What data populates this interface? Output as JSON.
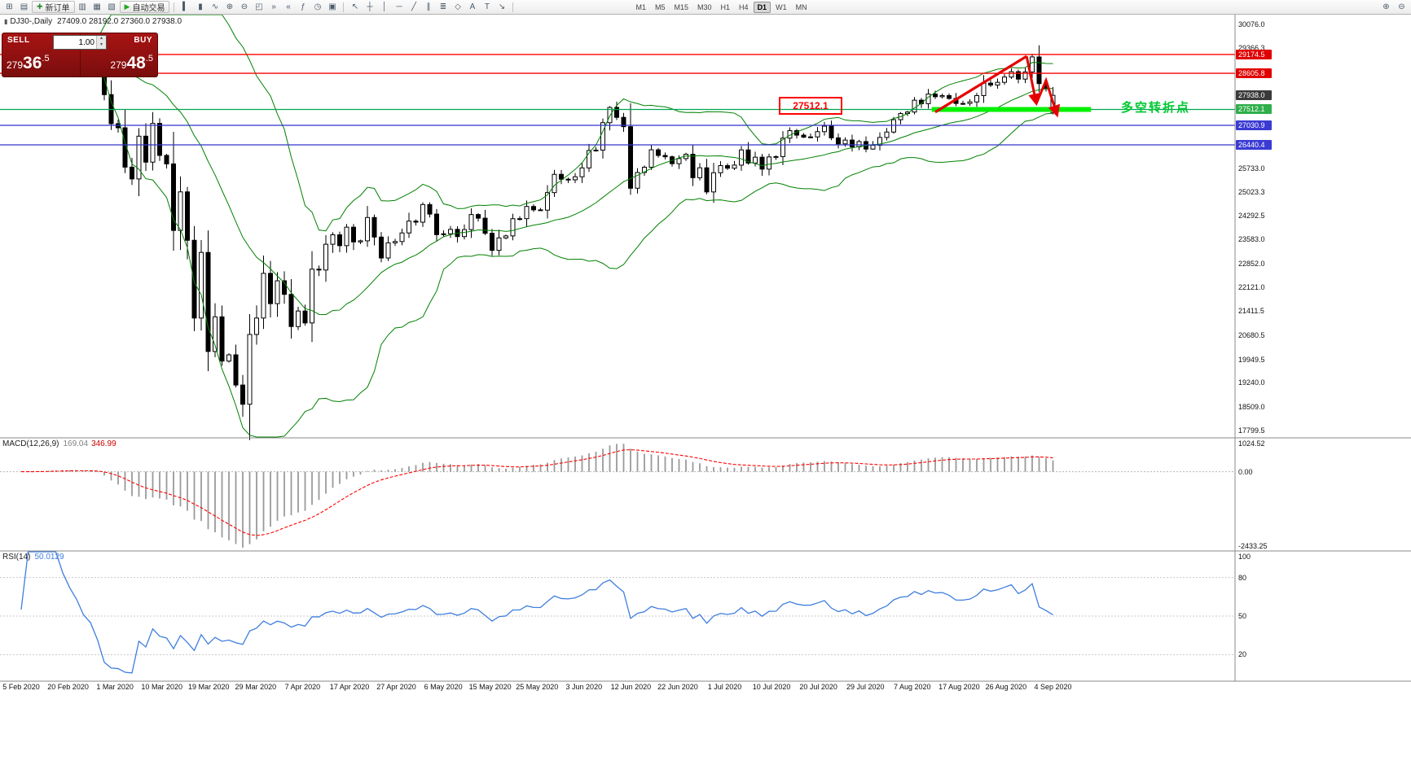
{
  "toolbar": {
    "groups": [
      {
        "items": [
          {
            "name": "new-chart-icon",
            "glyph": "⊞"
          },
          {
            "name": "chart-profiles-icon",
            "glyph": "▤"
          }
        ]
      },
      {
        "items": [
          {
            "name": "new-order-button",
            "glyph": "✚",
            "glyph_color": "#2e8b2e",
            "label": "新订单"
          }
        ]
      },
      {
        "items": [
          {
            "name": "market-watch-icon",
            "glyph": "▥"
          },
          {
            "name": "data-window-icon",
            "glyph": "▦"
          },
          {
            "name": "navigator-icon",
            "glyph": "▧"
          }
        ]
      },
      {
        "items": [
          {
            "name": "autotrading-button",
            "glyph": "▶",
            "glyph_color": "#1faa1f",
            "label": "自动交易"
          }
        ]
      },
      {
        "separator": true
      },
      {
        "items": [
          {
            "name": "bar-chart-icon",
            "glyph": "▍"
          },
          {
            "name": "candlestick-chart-icon",
            "glyph": "▮"
          },
          {
            "name": "line-chart-icon",
            "glyph": "∿"
          },
          {
            "name": "zoom-in-icon",
            "glyph": "⊕"
          },
          {
            "name": "zoom-out-icon",
            "glyph": "⊖"
          },
          {
            "name": "tile-windows-icon",
            "glyph": "◰"
          },
          {
            "name": "auto-scroll-icon",
            "glyph": "»"
          },
          {
            "name": "chart-shift-icon",
            "glyph": "«"
          },
          {
            "name": "indicators-icon",
            "glyph": "ƒ"
          },
          {
            "name": "periods-icon",
            "glyph": "◷"
          },
          {
            "name": "templates-icon",
            "glyph": "▣"
          }
        ]
      },
      {
        "separator": true
      },
      {
        "items": [
          {
            "name": "cursor-icon",
            "glyph": "↖"
          },
          {
            "name": "crosshair-icon",
            "glyph": "┼"
          },
          {
            "name": "vertical-line-icon",
            "glyph": "│"
          },
          {
            "name": "horizontal-line-icon",
            "glyph": "─"
          },
          {
            "name": "trendline-icon",
            "glyph": "╱"
          },
          {
            "name": "channel-icon",
            "glyph": "∥"
          },
          {
            "name": "fibonacci-icon",
            "glyph": "≣"
          },
          {
            "name": "shapes-icon",
            "glyph": "◇"
          },
          {
            "name": "text-icon",
            "glyph": "A"
          },
          {
            "name": "label-icon",
            "glyph": "T"
          },
          {
            "name": "arrows-icon",
            "glyph": "↘"
          }
        ]
      },
      {
        "separator": true
      }
    ],
    "timeframes": [
      {
        "label": "M1"
      },
      {
        "label": "M5"
      },
      {
        "label": "M15"
      },
      {
        "label": "M30"
      },
      {
        "label": "H1"
      },
      {
        "label": "H4"
      },
      {
        "label": "D1",
        "active": true
      },
      {
        "label": "W1"
      },
      {
        "label": "MN"
      }
    ],
    "right_items": [
      {
        "name": "magnifier-plus-icon",
        "glyph": "⊕"
      },
      {
        "name": "magnifier-minus-icon",
        "glyph": "⊖"
      }
    ]
  },
  "icons": {
    "spin_up": "▴",
    "spin_down": "▾",
    "symbol_icon": "▮"
  },
  "quote_bar": {
    "symbol_period": "DJ30-,Daily",
    "ohlc": "27409.0 28192.0 27360.0 27938.0"
  },
  "one_click": {
    "sell_label": "SELL",
    "buy_label": "BUY",
    "volume": "1.00",
    "sell_price": "27936.5",
    "buy_price": "27948.5"
  },
  "annotations": {
    "level_box": "27512.1",
    "turning_point_text": "多空转折点"
  },
  "indicators": {
    "macd_label": "MACD(12,26,9)",
    "macd_value_main": "169.04",
    "macd_value_signal": "346.99",
    "rsi_label": "RSI(14)",
    "rsi_value": "50.0129"
  },
  "chart_data": {
    "type": "candlestick",
    "symbol": "DJ30-",
    "timeframe": "Daily",
    "visible_range": {
      "first_date": "5 Feb 2020",
      "last_date": "8 Sep 2020",
      "price_min": 17600,
      "price_max": 30380
    },
    "last_candle": {
      "open": 27409.0,
      "high": 28192.0,
      "low": 27360.0,
      "close": 27938.0
    },
    "closes": [
      29290,
      29320,
      29360,
      29400,
      29480,
      29551,
      29500,
      29450,
      29398,
      29300,
      29232,
      28992,
      27960,
      27081,
      26957,
      25766,
      25409,
      26703,
      25917,
      27090,
      26121,
      25864,
      23851,
      25018,
      23553,
      21200,
      23185,
      20188,
      21237,
      19898,
      20087,
      19173,
      18592,
      20704,
      21200,
      22552,
      21636,
      22327,
      21917,
      20943,
      21413,
      21052,
      22679,
      22653,
      23433,
      23719,
      23390,
      23949,
      23504,
      23537,
      24242,
      23650,
      23018,
      23475,
      23515,
      23775,
      24133,
      24101,
      24634,
      24345,
      23724,
      23749,
      23883,
      23665,
      23876,
      24331,
      24222,
      23764,
      23248,
      23625,
      23685,
      24206,
      24207,
      24576,
      24474,
      24465,
      24995,
      25548,
      25401,
      25383,
      25475,
      25743,
      26270,
      26282,
      27111,
      27572,
      27272,
      26990,
      25128,
      25605,
      25763,
      26290,
      26120,
      26080,
      25871,
      26025,
      26156,
      25446,
      25746,
      25016,
      25596,
      25813,
      25735,
      25827,
      26287,
      25890,
      26067,
      25706,
      26075,
      26086,
      26643,
      26870,
      26735,
      26672,
      26681,
      26840,
      27006,
      26652,
      26470,
      26585,
      26379,
      26540,
      26313,
      26428,
      26664,
      26828,
      27202,
      27387,
      27433,
      27791,
      27687,
      27977,
      27897,
      27931,
      27845,
      27693,
      27693,
      27740,
      27931,
      28308,
      28249,
      28332,
      28492,
      28654,
      28430,
      28646,
      29101,
      28293,
      28133,
      27938
    ],
    "special_candles": {
      "32": {
        "low": 18214
      },
      "146": {
        "high": 29199
      },
      "149": {
        "open": 27409,
        "high": 28192,
        "low": 27360,
        "close": 27938
      }
    },
    "overlays": {
      "bollinger": {
        "period": 20,
        "deviation": 2,
        "color": "#008000"
      }
    },
    "horizontal_lines": [
      {
        "price": 29174.5,
        "color": "#ff0000"
      },
      {
        "price": 28605.8,
        "color": "#ff0000"
      },
      {
        "price": 27512.1,
        "color": "#00a651"
      },
      {
        "price": 27030.9,
        "color": "#3333cc"
      },
      {
        "price": 26440.4,
        "color": "#3333cc"
      }
    ],
    "highlight_segment": {
      "price": 27512.1,
      "x_from_day": 131.5,
      "x_to_day": 154.5,
      "color": "#00f000"
    },
    "trend_arrows": {
      "color": "#e60000",
      "rise": [
        [
          132,
          27430
        ],
        [
          145.2,
          29120
        ]
      ],
      "zigzag": [
        [
          145.2,
          29120
        ],
        [
          146.6,
          27690
        ],
        [
          148,
          28390
        ],
        [
          149.6,
          27340
        ]
      ]
    },
    "price_axis_labels": [
      "30076.0",
      "29366.3",
      "25733.0",
      "25023.3",
      "24292.5",
      "23583.0",
      "22852.0",
      "22121.0",
      "21411.5",
      "20680.5",
      "19949.5",
      "19240.0",
      "18509.0",
      "17799.5"
    ],
    "price_badges": [
      {
        "value": "29174.5",
        "color": "#e00000"
      },
      {
        "value": "28605.8",
        "color": "#e00000"
      },
      {
        "value": "27938.0",
        "color": "#3a3a3a"
      },
      {
        "value": "27512.1",
        "color": "#2fae4a"
      },
      {
        "value": "27030.9",
        "color": "#3b3bd4"
      },
      {
        "value": "26440.4",
        "color": "#3b3bd4"
      }
    ],
    "macd": {
      "axis": [
        1024.52,
        0.0,
        -2433.25
      ],
      "axis_labels": [
        "1024.52",
        "0.00",
        "-2433.25"
      ],
      "histogram_color": "#9a9a9a",
      "signal_color": "#ff0000"
    },
    "rsi": {
      "axis_labels": [
        "100",
        "80",
        "50",
        "20"
      ],
      "levels": [
        80,
        50,
        20
      ],
      "line_color": "#3e7ede"
    },
    "date_labels": [
      "5 Feb 2020",
      "20 Feb 2020",
      "1 Mar 2020",
      "10 Mar 2020",
      "19 Mar 2020",
      "29 Mar 2020",
      "7 Apr 2020",
      "17 Apr 2020",
      "27 Apr 2020",
      "6 May 2020",
      "15 May 2020",
      "25 May 2020",
      "3 Jun 2020",
      "12 Jun 2020",
      "22 Jun 2020",
      "1 Jul 2020",
      "10 Jul 2020",
      "20 Jul 2020",
      "29 Jul 2020",
      "7 Aug 2020",
      "17 Aug 2020",
      "26 Aug 2020",
      "4 Sep 2020"
    ]
  }
}
